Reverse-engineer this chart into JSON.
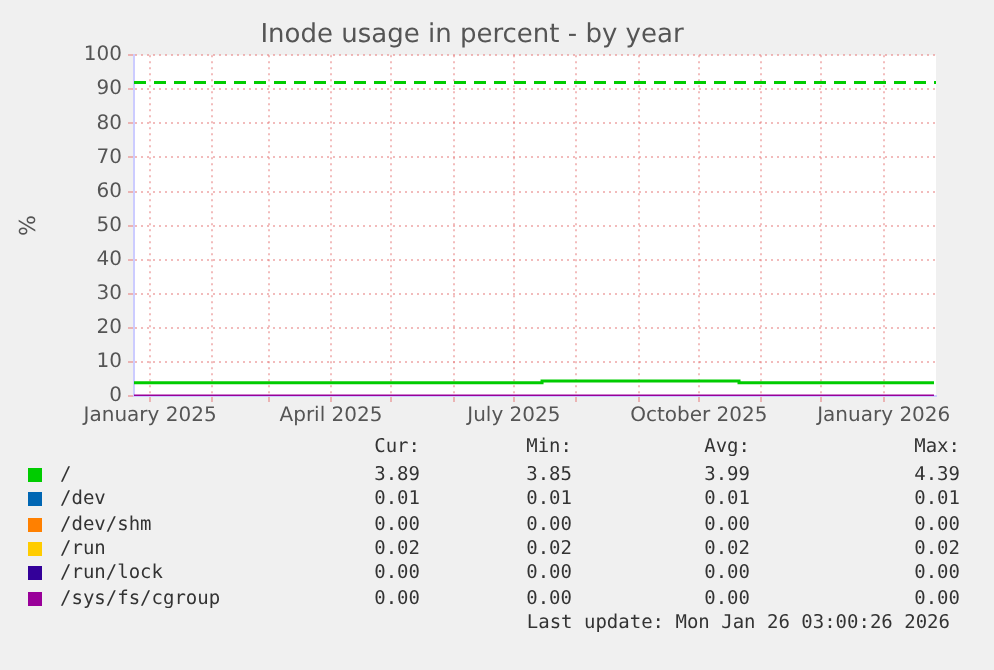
{
  "chart_data": {
    "type": "step",
    "title": "Inode usage in percent - by year",
    "ylabel": "%",
    "x": [
      "2024-12-24",
      "2025-07-15",
      "2025-10-21",
      "2026-01-26"
    ],
    "series": [
      {
        "name": "/",
        "color": "#00cc00",
        "values": [
          3.9,
          4.4,
          3.9,
          3.9
        ]
      },
      {
        "name": "/dev",
        "color": "#0066b3",
        "values": [
          null,
          null,
          null,
          null
        ]
      },
      {
        "name": "/dev/shm",
        "color": "#ff8000",
        "values": [
          null,
          null,
          null,
          null
        ]
      },
      {
        "name": "/run",
        "color": "#ffcc00",
        "values": [
          null,
          null,
          null,
          null
        ]
      },
      {
        "name": "/run/lock",
        "color": "#330099",
        "values": [
          null,
          null,
          null,
          null
        ]
      },
      {
        "name": "/sys/fs/cgroup",
        "color": "#990099",
        "values": [
          0,
          0,
          0,
          0
        ]
      }
    ],
    "xlim": [
      "2024-12-24",
      "2026-01-27"
    ],
    "xticks": [
      {
        "value": "2025-01-01",
        "label": "January 2025"
      },
      {
        "value": "2025-02-01",
        "label": null
      },
      {
        "value": "2025-03-01",
        "label": null
      },
      {
        "value": "2025-04-01",
        "label": "April 2025"
      },
      {
        "value": "2025-05-01",
        "label": null
      },
      {
        "value": "2025-06-01",
        "label": null
      },
      {
        "value": "2025-07-01",
        "label": "July 2025"
      },
      {
        "value": "2025-08-01",
        "label": null
      },
      {
        "value": "2025-09-01",
        "label": null
      },
      {
        "value": "2025-10-01",
        "label": "October 2025"
      },
      {
        "value": "2025-11-01",
        "label": null
      },
      {
        "value": "2025-12-01",
        "label": null
      },
      {
        "value": "2026-01-01",
        "label": "January 2026"
      }
    ],
    "ylim": [
      0,
      100
    ],
    "yticks": [
      0,
      10,
      20,
      30,
      40,
      50,
      60,
      70,
      80,
      90,
      100
    ],
    "grid": true,
    "legend": "bottom",
    "ref_lines": [
      {
        "axis": "y",
        "value": 92,
        "color": "#00cc00",
        "line_style": "dashed"
      }
    ],
    "annotations": [
      "Cur:",
      "Min:",
      "Avg:",
      "Max:",
      "3.89",
      "3.85",
      "3.99",
      "4.39",
      "0.01",
      "0.01",
      "0.01",
      "0.01",
      "0.00",
      "0.00",
      "0.00",
      "0.00",
      "0.02",
      "0.02",
      "0.02",
      "0.02",
      "0.00",
      "0.00",
      "0.00",
      "0.00",
      "0.00",
      "0.00",
      "0.00",
      "0.00",
      "Last update: Mon Jan 26 03:00:26 2026"
    ]
  }
}
